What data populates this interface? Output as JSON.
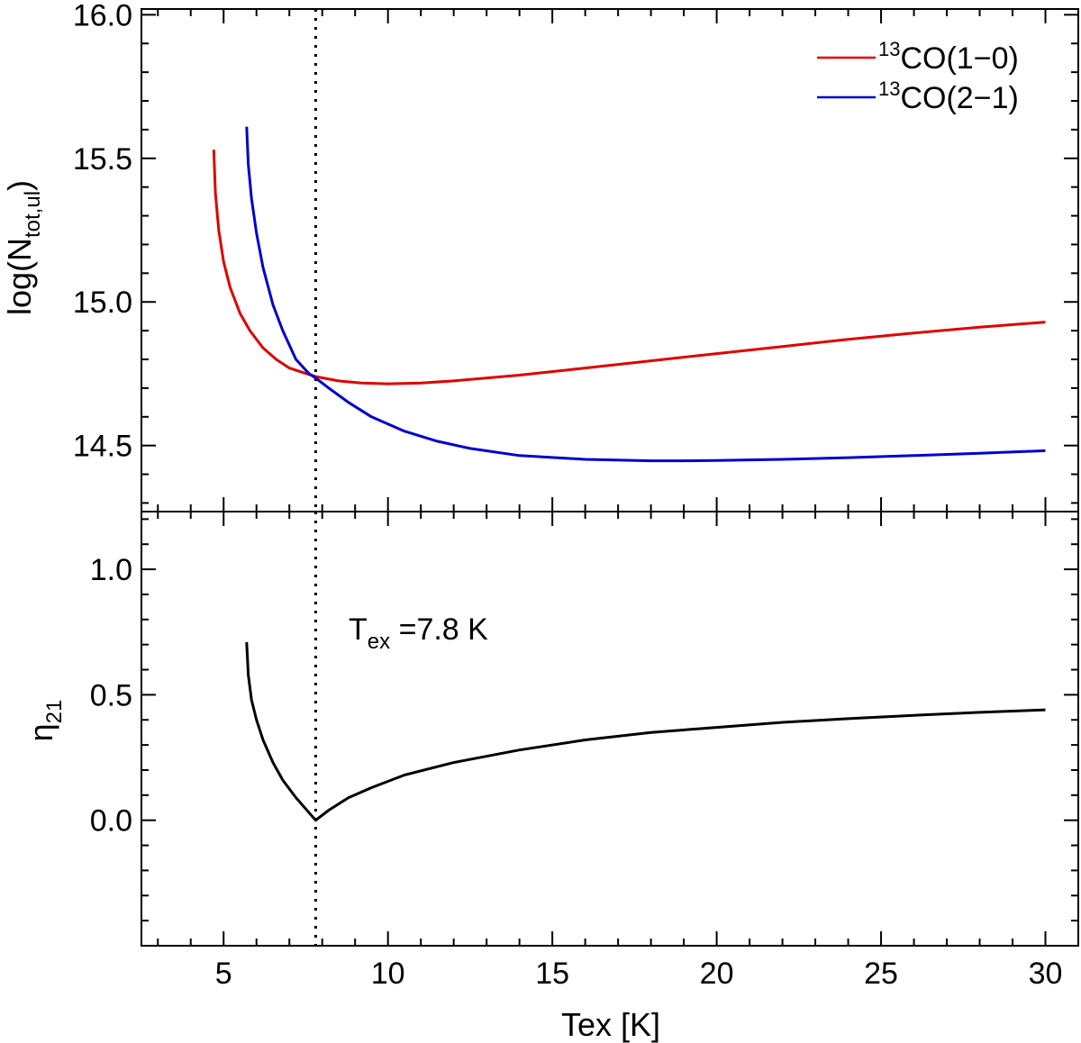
{
  "chart_data": [
    {
      "type": "line",
      "panel": "top",
      "ylabel": {
        "main": "log(N",
        "sub": "tot,ul",
        "close": ")"
      },
      "xlabel": "",
      "xlim": [
        2.5,
        31.0
      ],
      "ylim": [
        14.27,
        16.02
      ],
      "yticks": [
        14.5,
        15.0,
        15.5,
        16.0
      ],
      "ytick_labels": [
        "14.5",
        "15.0",
        "15.5",
        "16.0"
      ],
      "y_minor_step": 0.1,
      "legend": {
        "placement": "top-right",
        "entries": [
          {
            "sup": "13",
            "label": "CO(1−0)",
            "color": "#e00000"
          },
          {
            "sup": "13",
            "label": "CO(2−1)",
            "color": "#0000d0"
          }
        ]
      },
      "vline": {
        "x": 7.8,
        "style": "dotted",
        "color": "#000000"
      },
      "series": [
        {
          "name": "13CO(1-0)",
          "color": "#e00000",
          "x": [
            4.7,
            4.75,
            4.85,
            5.0,
            5.2,
            5.5,
            5.8,
            6.2,
            6.6,
            7.0,
            7.4,
            7.8,
            8.5,
            9.2,
            10.0,
            11.0,
            12.0,
            14.0,
            16.0,
            18.0,
            20.0,
            22.0,
            24.0,
            26.0,
            28.0,
            30.0
          ],
          "y": [
            15.53,
            15.38,
            15.25,
            15.14,
            15.05,
            14.96,
            14.9,
            14.84,
            14.8,
            14.77,
            14.755,
            14.74,
            14.725,
            14.718,
            14.715,
            14.718,
            14.725,
            14.745,
            14.77,
            14.795,
            14.82,
            14.845,
            14.87,
            14.892,
            14.912,
            14.93
          ]
        },
        {
          "name": "13CO(2-1)",
          "color": "#0000d0",
          "x": [
            5.7,
            5.75,
            5.85,
            6.0,
            6.2,
            6.5,
            6.8,
            7.2,
            7.6,
            7.8,
            8.2,
            8.8,
            9.5,
            10.5,
            11.5,
            12.5,
            14.0,
            16.0,
            18.0,
            19.0,
            20.0,
            22.0,
            24.0,
            26.0,
            28.0,
            30.0
          ],
          "y": [
            15.61,
            15.48,
            15.36,
            15.24,
            15.12,
            14.99,
            14.9,
            14.8,
            14.75,
            14.735,
            14.7,
            14.65,
            14.6,
            14.55,
            14.515,
            14.49,
            14.465,
            14.452,
            14.447,
            14.447,
            14.448,
            14.452,
            14.458,
            14.465,
            14.473,
            14.482
          ]
        }
      ]
    },
    {
      "type": "line",
      "panel": "bottom",
      "xlabel": "Tex [K]",
      "ylabel": {
        "main": "η",
        "sub": "21",
        "close": ""
      },
      "xlim": [
        2.5,
        31.0
      ],
      "ylim": [
        -0.5,
        1.23
      ],
      "xticks": [
        5,
        10,
        15,
        20,
        25,
        30
      ],
      "xtick_labels": [
        "5",
        "10",
        "15",
        "20",
        "25",
        "30"
      ],
      "x_minor_step": 1,
      "yticks": [
        0.0,
        0.5,
        1.0
      ],
      "ytick_labels": [
        "0.0",
        "0.5",
        "1.0"
      ],
      "y_minor_step": 0.1,
      "annotation": {
        "main": "T",
        "sub": "ex",
        "rest": " =7.8 K"
      },
      "vline": {
        "x": 7.8,
        "style": "dotted",
        "color": "#000000"
      },
      "series": [
        {
          "name": "eta21",
          "color": "#000000",
          "x": [
            5.7,
            5.75,
            5.85,
            6.0,
            6.2,
            6.5,
            6.8,
            7.2,
            7.6,
            7.8,
            8.2,
            8.8,
            9.5,
            10.5,
            12.0,
            14.0,
            16.0,
            18.0,
            20.0,
            22.0,
            24.0,
            26.0,
            28.0,
            30.0
          ],
          "y": [
            0.71,
            0.58,
            0.48,
            0.4,
            0.32,
            0.23,
            0.16,
            0.09,
            0.03,
            0.0,
            0.04,
            0.09,
            0.13,
            0.18,
            0.23,
            0.28,
            0.32,
            0.35,
            0.37,
            0.39,
            0.405,
            0.418,
            0.43,
            0.44
          ]
        }
      ]
    }
  ]
}
